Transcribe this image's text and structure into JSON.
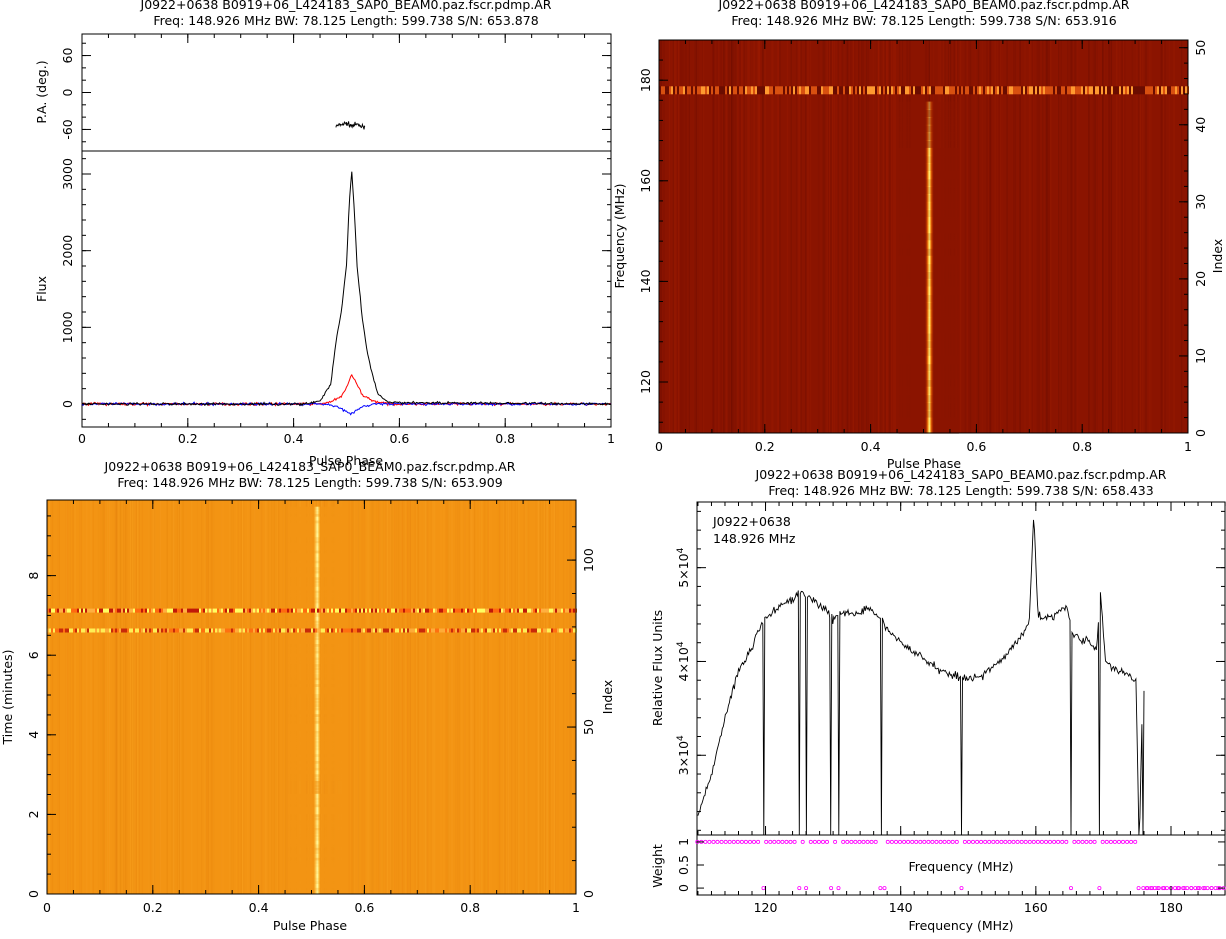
{
  "chart_data": [
    {
      "id": "profile",
      "type": "line",
      "title": "J0922+0638  B0919+06_L424183_SAP0_BEAM0.paz.fscr.pdmp.AR",
      "subtitle": "Freq:  148.926  MHz  BW:  78.125  Length:  599.738  S/N:  653.878",
      "xlabel": "Pulse Phase",
      "xlim": [
        0,
        1
      ],
      "xticks": [
        "0",
        "0.2",
        "0.4",
        "0.6",
        "0.8",
        "1"
      ],
      "pa": {
        "ylabel": "P.A. (deg.)",
        "ylim": [
          -95,
          95
        ],
        "yticks": [
          "-60",
          "0",
          "60"
        ],
        "x": [
          0.48,
          0.49,
          0.5,
          0.51,
          0.52,
          0.53,
          0.535
        ],
        "y": [
          -55,
          -52,
          -50,
          -54,
          -52,
          -56,
          -54
        ]
      },
      "flux": {
        "ylabel": "Flux",
        "ylim": [
          -300,
          3300
        ],
        "yticks": [
          "0",
          "1000",
          "2000",
          "3000"
        ],
        "series": [
          {
            "color": "#000000",
            "x": [
              0,
              0.42,
              0.45,
              0.47,
              0.48,
              0.49,
              0.5,
              0.505,
              0.51,
              0.515,
              0.52,
              0.53,
              0.54,
              0.55,
              0.56,
              0.58,
              1
            ],
            "y": [
              0,
              0,
              40,
              250,
              800,
              1200,
              1800,
              2600,
              3030,
              2500,
              1800,
              1100,
              650,
              350,
              120,
              20,
              0
            ]
          },
          {
            "color": "#ff0000",
            "x": [
              0,
              0.45,
              0.47,
              0.49,
              0.5,
              0.51,
              0.52,
              0.53,
              0.55,
              0.58,
              1
            ],
            "y": [
              0,
              0,
              30,
              90,
              220,
              380,
              250,
              120,
              40,
              0,
              0
            ]
          },
          {
            "color": "#0000ff",
            "x": [
              0,
              0.46,
              0.48,
              0.5,
              0.51,
              0.52,
              0.53,
              0.55,
              1
            ],
            "y": [
              0,
              0,
              -30,
              -90,
              -130,
              -80,
              -40,
              0,
              0
            ]
          }
        ]
      }
    },
    {
      "id": "freq-phase",
      "type": "heatmap",
      "title": "J0922+0638  B0919+06_L424183_SAP0_BEAM0.paz.fscr.pdmp.AR",
      "subtitle": "Freq:  148.926  MHz  BW:  78.125  Length:  599.738  S/N:  653.916",
      "xlabel": "Pulse Phase",
      "ylabel": "Frequency (MHz)",
      "y2label": "Index",
      "xlim": [
        0,
        1
      ],
      "ylim": [
        109.86,
        187.99
      ],
      "y2lim": [
        0,
        51
      ],
      "xticks": [
        "0",
        "0.2",
        "0.4",
        "0.6",
        "0.8",
        "1"
      ],
      "yticks": [
        "120",
        "140",
        "160",
        "180"
      ],
      "y2ticks": [
        "0",
        "10",
        "20",
        "30",
        "40",
        "50"
      ],
      "pulse_center": 0.51,
      "pulse_width": 0.03,
      "rfi_row_mhz": 178.0,
      "blank_above_mhz": 174.5,
      "colors": {
        "background": "#8b1400",
        "peak": "#ffff90"
      }
    },
    {
      "id": "time-phase",
      "type": "heatmap",
      "title": "J0922+0638  B0919+06_L424183_SAP0_BEAM0.paz.fscr.pdmp.AR",
      "subtitle": "Freq:  148.926  MHz  BW:  78.125  Length:  599.738  S/N:  653.909",
      "xlabel": "Pulse Phase",
      "ylabel": "Time (minutes)",
      "y2label": "Index",
      "xlim": [
        0,
        1
      ],
      "ylim": [
        0,
        9.9
      ],
      "y2lim": [
        0,
        118
      ],
      "xticks": [
        "0",
        "0.2",
        "0.4",
        "0.6",
        "0.8",
        "1"
      ],
      "yticks": [
        "0",
        "2",
        "4",
        "6",
        "8"
      ],
      "y2ticks": [
        "0",
        "50",
        "100"
      ],
      "pulse_center": 0.51,
      "pulse_width": 0.03,
      "rfi_rows_min": [
        7.12,
        6.62
      ],
      "colors": {
        "background": "#f39413",
        "peak": "#ffffa8"
      }
    },
    {
      "id": "bandpass",
      "type": "line",
      "title": "J0922+0638  B0919+06_L424183_SAP0_BEAM0.paz.fscr.pdmp.AR",
      "subtitle": "Freq:  148.926  MHz  BW:  78.125  Length:  599.738  S/N:  658.433",
      "annotation": [
        "J0922+0638",
        "148.926 MHz"
      ],
      "xlabel": "Frequency (MHz)",
      "xlim": [
        109.86,
        187.99
      ],
      "xticks": [
        "120",
        "140",
        "160",
        "180"
      ],
      "upper": {
        "ylabel": "Relative Flux Units",
        "ylim": [
          21500,
          57000
        ],
        "ytick_values": [
          30000,
          40000,
          50000
        ],
        "ytick_mantissa": [
          "3",
          "4",
          "5"
        ],
        "ytick_exp": "4",
        "x": [
          110,
          112,
          114,
          116,
          118,
          119,
          120,
          122,
          124,
          125,
          126,
          127,
          128,
          129,
          130,
          131,
          132,
          134,
          135,
          136,
          137,
          138,
          140,
          142,
          144,
          146,
          148,
          150,
          152,
          154,
          156,
          158,
          159,
          159.7,
          160.3,
          161,
          163,
          164.5,
          165.5,
          166.5,
          168,
          169,
          169.5,
          170.3,
          171,
          172,
          173,
          174,
          174.8,
          175.3,
          175.8,
          176.1
        ],
        "y": [
          23500,
          28000,
          34000,
          39000,
          41500,
          43500,
          44500,
          46000,
          46500,
          47500,
          47000,
          46500,
          46000,
          45500,
          44500,
          45000,
          45200,
          45000,
          46000,
          45000,
          44500,
          43500,
          42000,
          41000,
          40000,
          39000,
          38500,
          38200,
          38500,
          39500,
          41000,
          43000,
          44000,
          56000,
          45000,
          44500,
          45000,
          46000,
          43000,
          42500,
          42000,
          41000,
          48000,
          40000,
          39500,
          39000,
          38800,
          38500,
          38200,
          20000,
          37000,
          37000
        ],
        "dips": [
          119.7,
          125,
          126,
          129.7,
          130.8,
          137.2,
          149,
          165.2,
          169.4,
          175.2,
          175.9
        ]
      },
      "weight": {
        "ylabel": "Weight",
        "ylim": [
          -0.15,
          1.15
        ],
        "yticks": [
          "0",
          "0.5",
          "1"
        ],
        "zero_channels": [
          119.7,
          125.0,
          126.0,
          129.7,
          130.8,
          137.0,
          137.6,
          149.0,
          165.2,
          169.4,
          175.2,
          175.9,
          176.5,
          177.2,
          178.0,
          179.0,
          180.0,
          181.0,
          182.0,
          183.0,
          184.0,
          185.0,
          186.0,
          187.0
        ],
        "one_from": 109.9,
        "one_to": 176.2,
        "xlabel_inner": "Frequency (MHz)"
      }
    }
  ]
}
